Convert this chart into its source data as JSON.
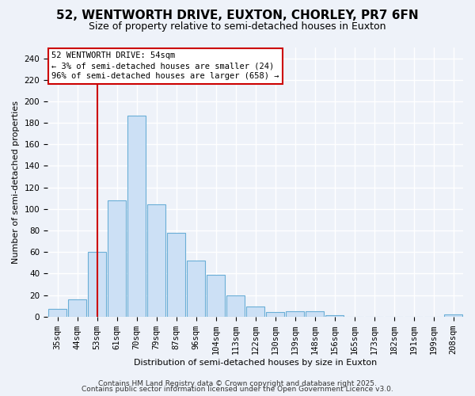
{
  "title": "52, WENTWORTH DRIVE, EUXTON, CHORLEY, PR7 6FN",
  "subtitle": "Size of property relative to semi-detached houses in Euxton",
  "xlabel": "Distribution of semi-detached houses by size in Euxton",
  "ylabel": "Number of semi-detached properties",
  "bins": [
    "35sqm",
    "44sqm",
    "53sqm",
    "61sqm",
    "70sqm",
    "79sqm",
    "87sqm",
    "96sqm",
    "104sqm",
    "113sqm",
    "122sqm",
    "130sqm",
    "139sqm",
    "148sqm",
    "156sqm",
    "165sqm",
    "173sqm",
    "182sqm",
    "191sqm",
    "199sqm",
    "208sqm"
  ],
  "values": [
    7,
    16,
    60,
    108,
    187,
    104,
    78,
    52,
    39,
    20,
    9,
    4,
    5,
    5,
    1,
    0,
    0,
    0,
    0,
    0,
    2
  ],
  "bar_color": "#cce0f5",
  "bar_edge_color": "#6aaed6",
  "red_line_color": "#cc0000",
  "red_line_x": 2,
  "annotation_title": "52 WENTWORTH DRIVE: 54sqm",
  "annotation_line1": "← 3% of semi-detached houses are smaller (24)",
  "annotation_line2": "96% of semi-detached houses are larger (658) →",
  "annotation_box_facecolor": "#ffffff",
  "annotation_box_edgecolor": "#cc0000",
  "ylim": [
    0,
    250
  ],
  "yticks": [
    0,
    20,
    40,
    60,
    80,
    100,
    120,
    140,
    160,
    180,
    200,
    220,
    240
  ],
  "footer1": "Contains HM Land Registry data © Crown copyright and database right 2025.",
  "footer2": "Contains public sector information licensed under the Open Government Licence v3.0.",
  "bg_color": "#eef2f9",
  "plot_bg_color": "#eef2f9",
  "grid_color": "#ffffff",
  "title_fontsize": 11,
  "subtitle_fontsize": 9,
  "axis_label_fontsize": 8,
  "tick_fontsize": 7.5,
  "annotation_fontsize": 7.5,
  "footer_fontsize": 6.5
}
